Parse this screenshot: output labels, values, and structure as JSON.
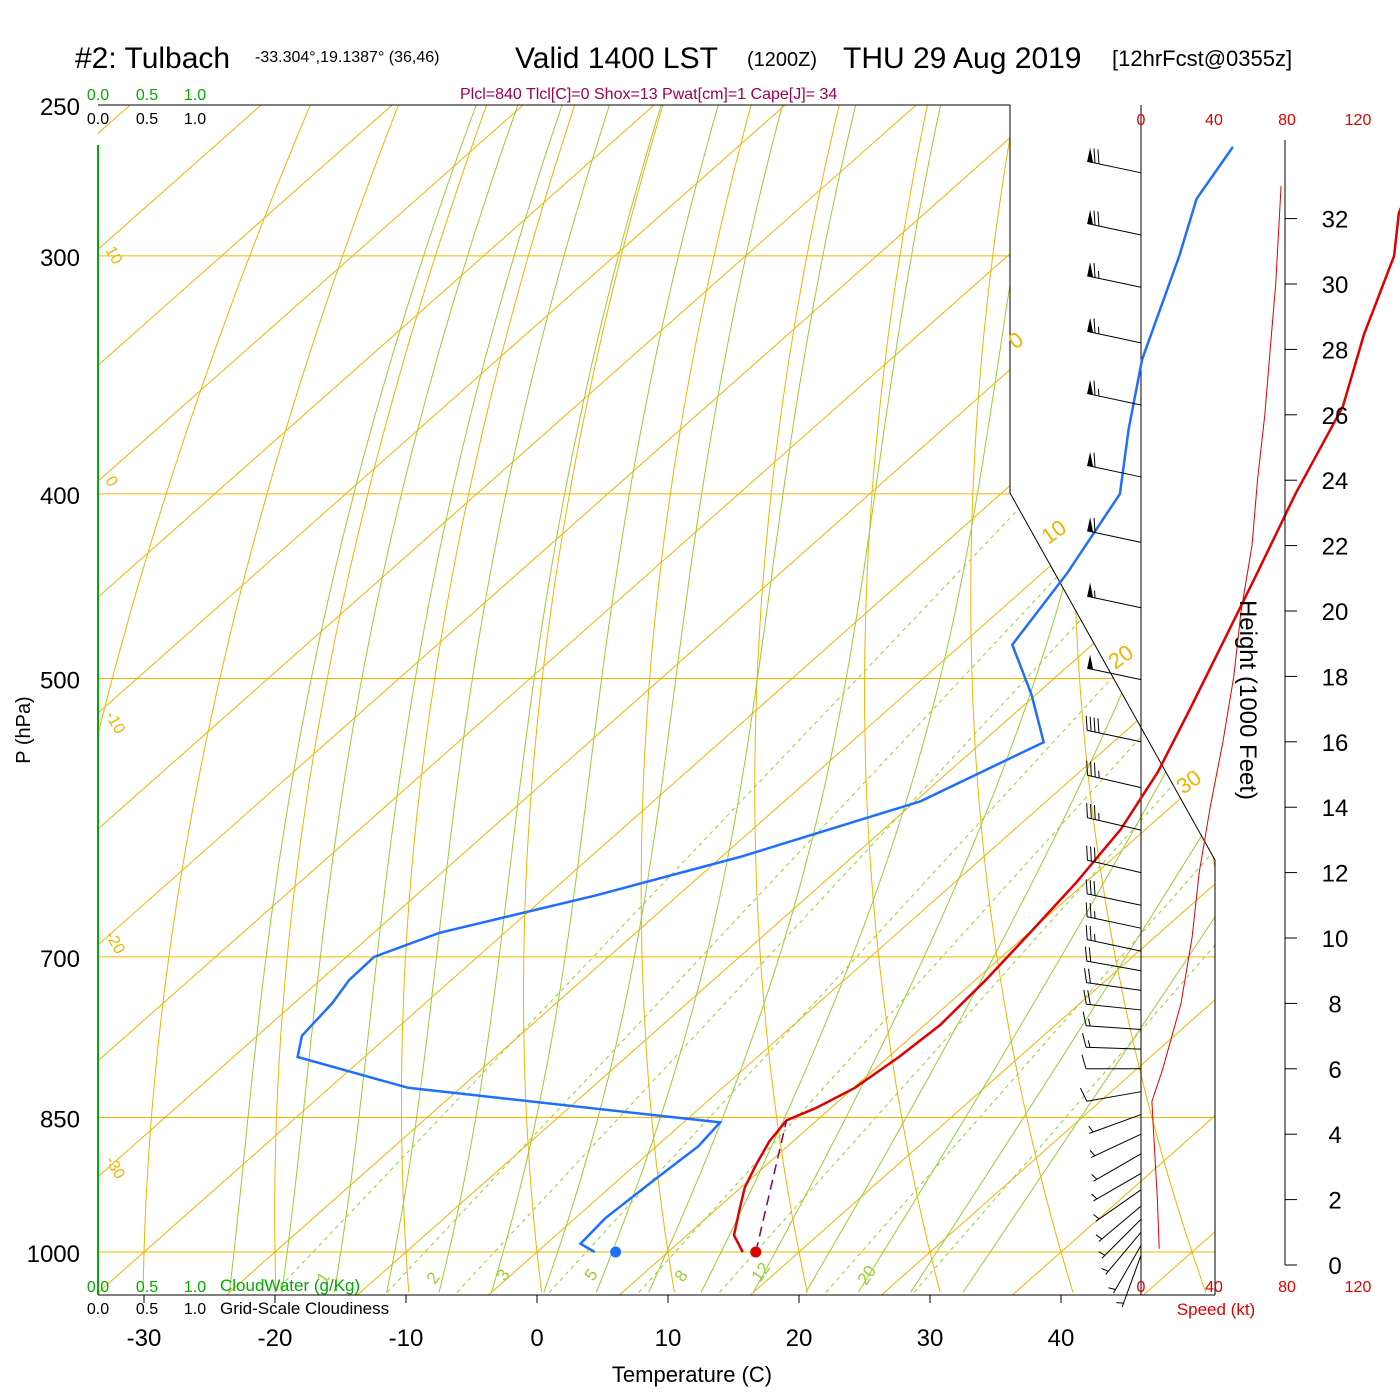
{
  "header": {
    "station": "#2: Tulbach",
    "coords": "-33.304°,19.1387° (36,46)",
    "valid": "Valid 1400 LST",
    "zulu": "(1200Z)",
    "date": "THU 29 Aug 2019",
    "fcst": "[12hrFcst@0355z]",
    "indices": "Plcl=840 Tlcl[C]=0 Shox=13 Pwat[cm]=1 Cape[J]= 34"
  },
  "scales": {
    "cloudwater_ticks": [
      "0.0",
      "0.5",
      "1.0"
    ],
    "cloudwater_label": "CloudWater (g/Kg)",
    "cloudiness_ticks": [
      "0.0",
      "0.5",
      "1.0"
    ],
    "cloudiness_label": "Grid-Scale Cloudiness",
    "speed_ticks": [
      "0",
      "40",
      "80",
      "120"
    ],
    "speed_label": "Speed (kt)"
  },
  "colors": {
    "temperature": "#e00000",
    "dewpoint": "#1f6fff",
    "isotherm": "#f0b400",
    "dry_adiabat": "#f0b400",
    "moist_adiabat": "#9acd32",
    "mixing_ratio": "#9acd32",
    "parcel": "#8b0050",
    "cloud": "#00aa00",
    "speed": "#e00000",
    "indices": "#a00050"
  },
  "chart_data": {
    "type": "skew-t",
    "xlabel": "Temperature (C)",
    "ylabel": "P (hPa)",
    "y2label": "Height (1000 Feet)",
    "x_ticks": [
      -30,
      -20,
      -10,
      0,
      10,
      20,
      30,
      40
    ],
    "p_ticks": [
      250,
      300,
      400,
      500,
      700,
      850,
      1000
    ],
    "height_ticks": [
      0,
      2,
      4,
      6,
      8,
      10,
      12,
      14,
      16,
      18,
      20,
      22,
      24,
      26,
      28,
      30,
      32
    ],
    "skew_isotherm_labels": [
      "10",
      "0",
      "-10",
      "-20",
      "-30"
    ],
    "right_isotherm_labels": [
      "0",
      "10",
      "20",
      "30"
    ],
    "mixing_ratio_labels": [
      "1",
      "2",
      "3",
      "5",
      "8",
      "12",
      "20"
    ],
    "temperature_profile": [
      {
        "p": 1000,
        "t": 15.7
      },
      {
        "p": 980,
        "t": 13.6
      },
      {
        "p": 950,
        "t": 11.8
      },
      {
        "p": 925,
        "t": 10.3
      },
      {
        "p": 900,
        "t": 9.2
      },
      {
        "p": 875,
        "t": 8.2
      },
      {
        "p": 853,
        "t": 7.7
      },
      {
        "p": 840,
        "t": 8.9
      },
      {
        "p": 820,
        "t": 10.1
      },
      {
        "p": 790,
        "t": 10.8
      },
      {
        "p": 760,
        "t": 11.2
      },
      {
        "p": 720,
        "t": 10.8
      },
      {
        "p": 680,
        "t": 10.1
      },
      {
        "p": 640,
        "t": 9.3
      },
      {
        "p": 600,
        "t": 8.1
      },
      {
        "p": 560,
        "t": 6.0
      },
      {
        "p": 520,
        "t": 3.1
      },
      {
        "p": 480,
        "t": -0.1
      },
      {
        "p": 440,
        "t": -3.6
      },
      {
        "p": 400,
        "t": -7.5
      },
      {
        "p": 360,
        "t": -11.4
      },
      {
        "p": 330,
        "t": -16.0
      },
      {
        "p": 300,
        "t": -20.5
      },
      {
        "p": 285,
        "t": -23.8
      },
      {
        "p": 263,
        "t": -27.5
      }
    ],
    "dewpoint_profile": [
      {
        "p": 1000,
        "t": 4.4
      },
      {
        "p": 990,
        "t": 2.6
      },
      {
        "p": 960,
        "t": 2.3
      },
      {
        "p": 920,
        "t": 2.7
      },
      {
        "p": 880,
        "t": 3.2
      },
      {
        "p": 855,
        "t": 2.8
      },
      {
        "p": 820,
        "t": -24.0
      },
      {
        "p": 790,
        "t": -35.1
      },
      {
        "p": 770,
        "t": -36.6
      },
      {
        "p": 740,
        "t": -37.1
      },
      {
        "p": 720,
        "t": -37.8
      },
      {
        "p": 700,
        "t": -37.9
      },
      {
        "p": 680,
        "t": -35.0
      },
      {
        "p": 650,
        "t": -26.3
      },
      {
        "p": 620,
        "t": -18.5
      },
      {
        "p": 580,
        "t": -9.6
      },
      {
        "p": 540,
        "t": -5.3
      },
      {
        "p": 510,
        "t": -10.3
      },
      {
        "p": 480,
        "t": -16.1
      },
      {
        "p": 440,
        "t": -18.1
      },
      {
        "p": 400,
        "t": -20.9
      },
      {
        "p": 370,
        "t": -25.8
      },
      {
        "p": 340,
        "t": -30.8
      },
      {
        "p": 300,
        "t": -36.9
      },
      {
        "p": 280,
        "t": -40.5
      },
      {
        "p": 263,
        "t": -42.2
      }
    ],
    "parcel_path": [
      {
        "p": 1000,
        "t": 16.7
      },
      {
        "p": 853,
        "t": 7.7
      }
    ],
    "surface_markers": {
      "t": 16.7,
      "td": 6.0,
      "p": 1000
    },
    "wind_speed_profile_kt": [
      {
        "z_kft": 0.5,
        "v": 10
      },
      {
        "z_kft": 2,
        "v": 9
      },
      {
        "z_kft": 4,
        "v": 7
      },
      {
        "z_kft": 5,
        "v": 6
      },
      {
        "z_kft": 6,
        "v": 12
      },
      {
        "z_kft": 8,
        "v": 22
      },
      {
        "z_kft": 10,
        "v": 28
      },
      {
        "z_kft": 12,
        "v": 32
      },
      {
        "z_kft": 14,
        "v": 38
      },
      {
        "z_kft": 16,
        "v": 45
      },
      {
        "z_kft": 18,
        "v": 51
      },
      {
        "z_kft": 20,
        "v": 55
      },
      {
        "z_kft": 22,
        "v": 61
      },
      {
        "z_kft": 24,
        "v": 64
      },
      {
        "z_kft": 26,
        "v": 68
      },
      {
        "z_kft": 28,
        "v": 71
      },
      {
        "z_kft": 30,
        "v": 74
      },
      {
        "z_kft": 32,
        "v": 76
      },
      {
        "z_kft": 33,
        "v": 77
      }
    ],
    "wind_barbs": [
      {
        "z_kft": 0.3,
        "dir": 200,
        "kt": 5
      },
      {
        "z_kft": 0.6,
        "dir": 210,
        "kt": 5
      },
      {
        "z_kft": 1.0,
        "dir": 220,
        "kt": 5
      },
      {
        "z_kft": 1.4,
        "dir": 225,
        "kt": 5
      },
      {
        "z_kft": 1.8,
        "dir": 230,
        "kt": 5
      },
      {
        "z_kft": 2.3,
        "dir": 235,
        "kt": 5
      },
      {
        "z_kft": 2.8,
        "dir": 240,
        "kt": 5
      },
      {
        "z_kft": 3.4,
        "dir": 240,
        "kt": 5
      },
      {
        "z_kft": 4.0,
        "dir": 245,
        "kt": 5
      },
      {
        "z_kft": 4.6,
        "dir": 250,
        "kt": 5
      },
      {
        "z_kft": 5.3,
        "dir": 260,
        "kt": 10
      },
      {
        "z_kft": 6.0,
        "dir": 270,
        "kt": 10
      },
      {
        "z_kft": 6.6,
        "dir": 272,
        "kt": 15
      },
      {
        "z_kft": 7.2,
        "dir": 274,
        "kt": 15
      },
      {
        "z_kft": 7.8,
        "dir": 276,
        "kt": 20
      },
      {
        "z_kft": 8.4,
        "dir": 278,
        "kt": 20
      },
      {
        "z_kft": 9.0,
        "dir": 280,
        "kt": 20
      },
      {
        "z_kft": 9.6,
        "dir": 282,
        "kt": 25
      },
      {
        "z_kft": 10.3,
        "dir": 282,
        "kt": 25
      },
      {
        "z_kft": 11.0,
        "dir": 282,
        "kt": 30
      },
      {
        "z_kft": 12.0,
        "dir": 283,
        "kt": 30
      },
      {
        "z_kft": 13.3,
        "dir": 283,
        "kt": 35
      },
      {
        "z_kft": 14.6,
        "dir": 283,
        "kt": 35
      },
      {
        "z_kft": 16.0,
        "dir": 282,
        "kt": 40
      },
      {
        "z_kft": 17.9,
        "dir": 282,
        "kt": 50
      },
      {
        "z_kft": 20.1,
        "dir": 282,
        "kt": 55
      },
      {
        "z_kft": 22.1,
        "dir": 282,
        "kt": 60
      },
      {
        "z_kft": 24.1,
        "dir": 282,
        "kt": 60
      },
      {
        "z_kft": 26.3,
        "dir": 282,
        "kt": 65
      },
      {
        "z_kft": 28.2,
        "dir": 282,
        "kt": 65
      },
      {
        "z_kft": 29.9,
        "dir": 282,
        "kt": 65
      },
      {
        "z_kft": 31.5,
        "dir": 282,
        "kt": 70
      },
      {
        "z_kft": 33.4,
        "dir": 282,
        "kt": 70
      }
    ]
  }
}
